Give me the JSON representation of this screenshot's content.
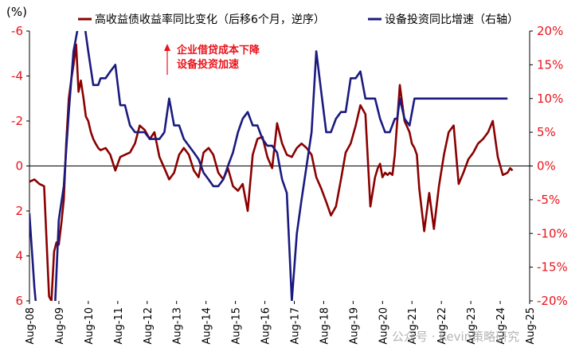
{
  "chart_data": {
    "type": "line",
    "left_axis": {
      "unit_label": "(%)",
      "min": -6,
      "max": 6,
      "inverted": true,
      "ticks": [
        "-6",
        "-4",
        "-2",
        "0",
        "2",
        "4",
        "6"
      ],
      "tick_values": [
        -6,
        -4,
        -2,
        0,
        2,
        4,
        6
      ],
      "color": "#e8141c"
    },
    "right_axis": {
      "min": -20,
      "max": 20,
      "ticks": [
        "20%",
        "15%",
        "10%",
        "5%",
        "0%",
        "-5%",
        "-10%",
        "-15%",
        "-20%"
      ],
      "tick_values": [
        20,
        15,
        10,
        5,
        0,
        -5,
        -10,
        -15,
        -20
      ],
      "color": "#e8141c"
    },
    "x_ticks": [
      "Aug-08",
      "Aug-09",
      "Aug-10",
      "Aug-11",
      "Aug-12",
      "Aug-13",
      "Aug-14",
      "Aug-15",
      "Aug-16",
      "Aug-17",
      "Aug-18",
      "Aug-19",
      "Aug-20",
      "Aug-21",
      "Aug-22",
      "Aug-23",
      "Aug-24",
      "Aug-25"
    ],
    "x_tick_t": [
      2008.583,
      2009.583,
      2010.583,
      2011.583,
      2012.583,
      2013.583,
      2014.583,
      2015.583,
      2016.583,
      2017.583,
      2018.583,
      2019.583,
      2020.583,
      2021.583,
      2022.583,
      2023.583,
      2024.583,
      2025.583
    ],
    "x_range": [
      2008.583,
      2025.583
    ],
    "legend": [
      {
        "label": "高收益债收益率同比变化（后移6个月，逆序）",
        "color": "#8b0000"
      },
      {
        "label": "设备投资同比增速（右轴）",
        "color": "#1a1a80"
      }
    ],
    "annotation": {
      "line1": "企业借贷成本下降",
      "line2": "设备投资加速"
    },
    "watermark": "公众号 · Kevin策略研究",
    "series": [
      {
        "name": "高收益债收益率同比变化（后移6个月，逆序）",
        "axis": "left",
        "color": "#8b0000",
        "t": [
          2008.58,
          2008.75,
          2008.92,
          2009.08,
          2009.25,
          2009.33,
          2009.42,
          2009.5,
          2009.58,
          2009.67,
          2009.75,
          2009.83,
          2009.92,
          2010.0,
          2010.08,
          2010.17,
          2010.25,
          2010.33,
          2010.42,
          2010.5,
          2010.58,
          2010.67,
          2010.75,
          2010.83,
          2010.92,
          2011.0,
          2011.17,
          2011.33,
          2011.5,
          2011.67,
          2011.83,
          2012.0,
          2012.17,
          2012.33,
          2012.5,
          2012.67,
          2012.83,
          2013.0,
          2013.17,
          2013.33,
          2013.5,
          2013.67,
          2013.83,
          2014.0,
          2014.17,
          2014.33,
          2014.5,
          2014.67,
          2014.83,
          2015.0,
          2015.17,
          2015.33,
          2015.5,
          2015.67,
          2015.83,
          2016.0,
          2016.17,
          2016.33,
          2016.5,
          2016.67,
          2016.83,
          2017.0,
          2017.17,
          2017.33,
          2017.5,
          2017.67,
          2017.83,
          2018.0,
          2018.17,
          2018.33,
          2018.5,
          2018.67,
          2018.83,
          2019.0,
          2019.17,
          2019.33,
          2019.5,
          2019.67,
          2019.83,
          2020.0,
          2020.17,
          2020.33,
          2020.42,
          2020.5,
          2020.58,
          2020.67,
          2020.75,
          2020.83,
          2020.92,
          2021.0,
          2021.17,
          2021.33,
          2021.5,
          2021.58,
          2021.67,
          2021.75,
          2021.83,
          2022.0,
          2022.17,
          2022.33,
          2022.5,
          2022.67,
          2022.83,
          2023.0,
          2023.17,
          2023.33,
          2023.5,
          2023.67,
          2023.83,
          2024.0,
          2024.17,
          2024.33,
          2024.5,
          2024.67,
          2024.83,
          2024.92,
          2025.0,
          2025.17,
          2025.33,
          2025.5,
          2025.67
        ],
        "v": [
          0.7,
          0.6,
          0.8,
          0.9,
          5.8,
          6.0,
          3.8,
          3.4,
          3.5,
          2.5,
          1.5,
          -1.0,
          -3.0,
          -3.8,
          -4.5,
          -5.4,
          -3.3,
          -3.8,
          -3.0,
          -2.2,
          -2.0,
          -1.5,
          -1.2,
          -1.0,
          -0.8,
          -0.7,
          -0.8,
          -0.5,
          0.2,
          -0.4,
          -0.5,
          -0.6,
          -1.0,
          -1.8,
          -1.6,
          -1.2,
          -1.5,
          -0.4,
          0.1,
          0.6,
          0.3,
          -0.5,
          -0.8,
          -0.5,
          0.2,
          0.5,
          -0.6,
          -0.8,
          -0.5,
          0.3,
          0.6,
          0.1,
          0.9,
          1.1,
          0.8,
          2.0,
          -0.5,
          -1.2,
          -1.3,
          -0.4,
          0.1,
          -1.9,
          -1.0,
          -0.5,
          -0.4,
          -0.8,
          -1.0,
          -0.8,
          -0.5,
          0.5,
          1.0,
          1.6,
          2.2,
          1.8,
          0.6,
          -0.6,
          -1.0,
          -1.8,
          -2.7,
          -2.3,
          1.8,
          0.5,
          0.1,
          -0.1,
          0.5,
          0.3,
          0.4,
          0.3,
          0.4,
          -0.5,
          -3.6,
          -2.0,
          -1.5,
          -1.0,
          -0.8,
          -0.5,
          1.0,
          2.9,
          1.2,
          2.8,
          0.9,
          -0.5,
          -1.5,
          -1.8,
          0.8,
          0.3,
          -0.3,
          -0.6,
          -1.0,
          -1.2,
          -1.5,
          -2.0,
          -0.4,
          0.4,
          0.3,
          0.1,
          0.2
        ]
      },
      {
        "name": "设备投资同比增速（右轴）",
        "axis": "right",
        "color": "#1a1a80",
        "t": [
          2008.58,
          2008.75,
          2008.92,
          2009.08,
          2009.25,
          2009.42,
          2009.58,
          2009.75,
          2009.92,
          2010.08,
          2010.25,
          2010.42,
          2010.58,
          2010.75,
          2010.92,
          2011.0,
          2011.17,
          2011.33,
          2011.5,
          2011.67,
          2011.83,
          2012.0,
          2012.17,
          2012.33,
          2012.5,
          2012.67,
          2012.83,
          2013.0,
          2013.17,
          2013.33,
          2013.5,
          2013.67,
          2013.83,
          2014.0,
          2014.17,
          2014.33,
          2014.5,
          2014.67,
          2014.83,
          2015.0,
          2015.17,
          2015.33,
          2015.5,
          2015.67,
          2015.83,
          2016.0,
          2016.17,
          2016.33,
          2016.5,
          2016.67,
          2016.83,
          2017.0,
          2017.17,
          2017.33,
          2017.5,
          2017.67,
          2017.83,
          2018.0,
          2018.17,
          2018.33,
          2018.5,
          2018.67,
          2018.83,
          2019.0,
          2019.17,
          2019.33,
          2019.5,
          2019.67,
          2019.83,
          2020.0,
          2020.17,
          2020.33,
          2020.5,
          2020.67,
          2020.83,
          2021.0,
          2021.08,
          2021.17,
          2021.33,
          2021.5,
          2021.67,
          2021.83,
          2022.0,
          2022.17,
          2022.33,
          2022.5,
          2022.67,
          2022.83,
          2023.0,
          2023.17,
          2023.33,
          2023.5,
          2023.67,
          2023.83,
          2024.0,
          2024.17,
          2024.33,
          2024.5,
          2024.67,
          2024.83
        ],
        "v": [
          -7,
          -18,
          -26,
          -28,
          -29,
          -24,
          -8,
          -3,
          8,
          17,
          21,
          22,
          17,
          12,
          12,
          13,
          13,
          14,
          15,
          9,
          9,
          6,
          5,
          5,
          5,
          4,
          4,
          4,
          5,
          10,
          6,
          6,
          4,
          3,
          2,
          1,
          -1,
          -2,
          -3,
          -3,
          -2,
          0,
          2,
          5,
          7,
          8,
          6,
          6,
          4,
          3,
          3,
          2,
          -2,
          -4,
          -20,
          -10,
          -5,
          0,
          5,
          17,
          11,
          5,
          5,
          7,
          8,
          8,
          13,
          13,
          14,
          10,
          10,
          10,
          7,
          5,
          5,
          7,
          7,
          10,
          7,
          6,
          10,
          10,
          10,
          10,
          10,
          10,
          10,
          10,
          10,
          10,
          10,
          10,
          10,
          10,
          10,
          10,
          10,
          10,
          10,
          10
        ]
      }
    ]
  }
}
